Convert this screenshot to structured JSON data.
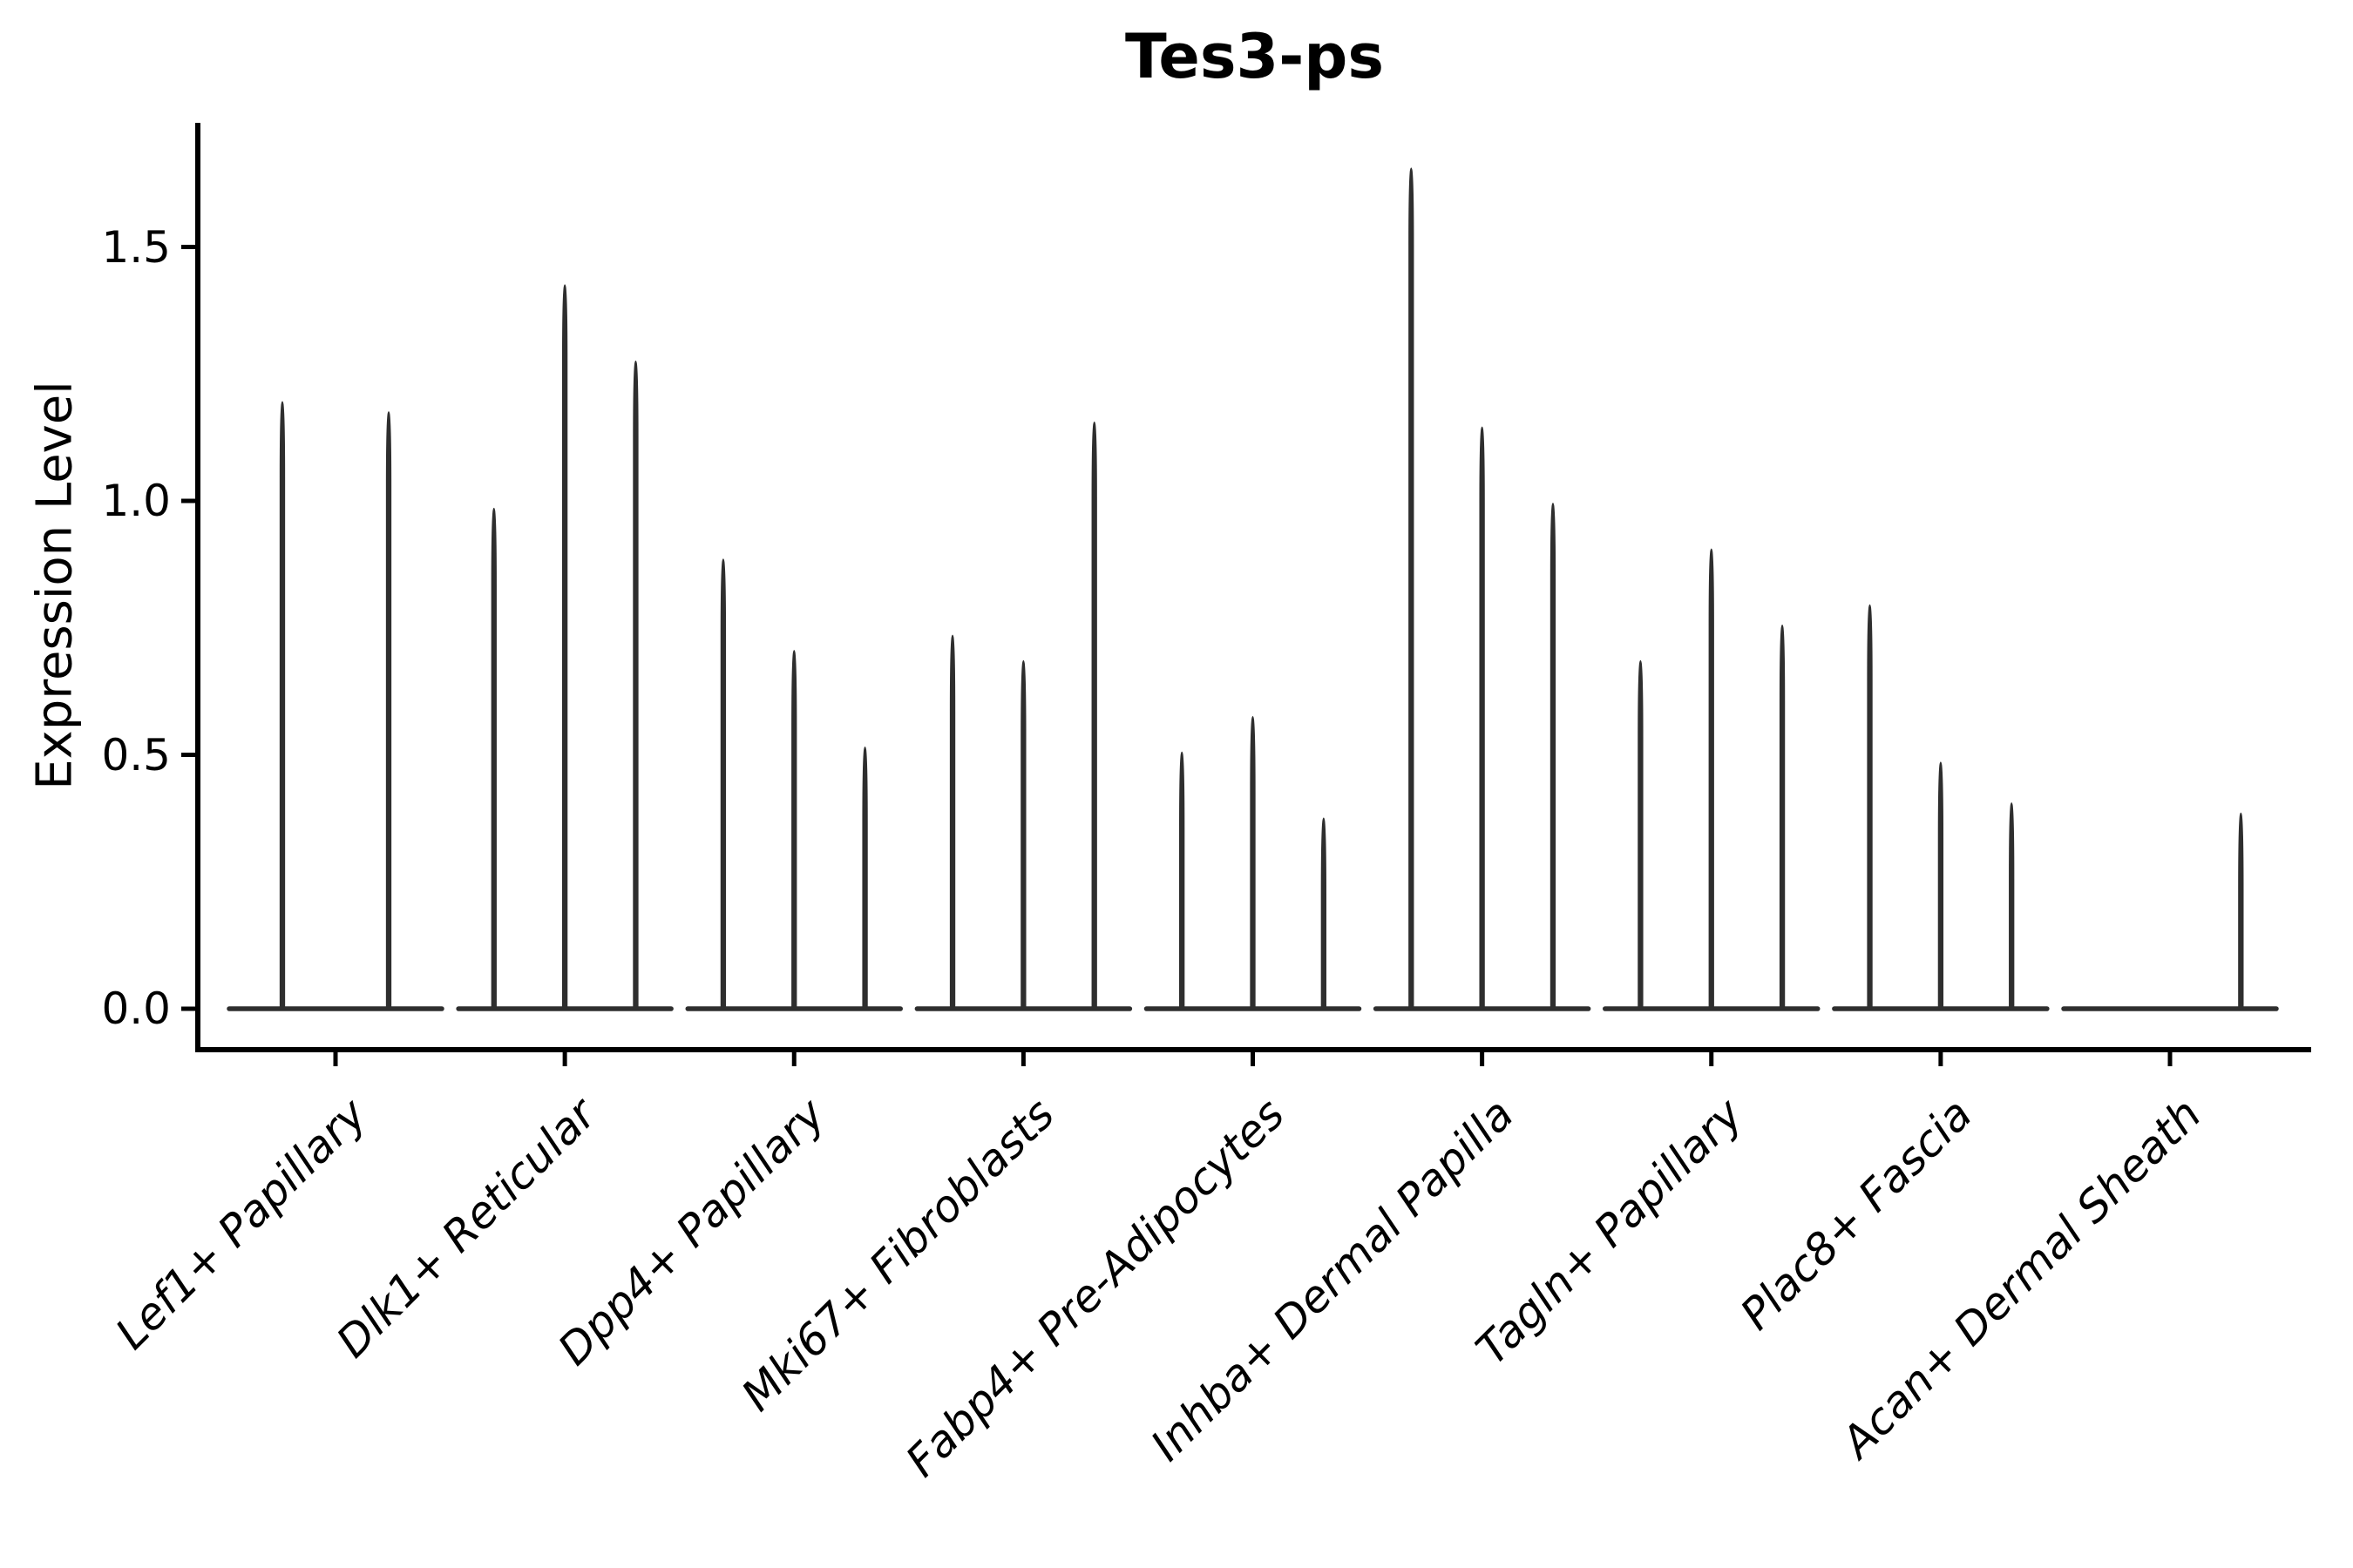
{
  "chart_data": {
    "type": "violin",
    "title": "Tes3-ps",
    "ylabel": "Expression Level",
    "xlabel": "",
    "ylim": [
      -0.08,
      1.74
    ],
    "yticks": [
      "0.0",
      "0.5",
      "1.0",
      "1.5"
    ],
    "ytick_values": [
      0.0,
      0.5,
      1.0,
      1.5
    ],
    "grid": false,
    "legend": null,
    "violin_color": "#2e2e2e",
    "axis_color": "#000000",
    "categories": [
      "Lef1+ Papillary",
      "Dlk1+ Reticular",
      "Dpp4+ Papillary",
      "Mki67+ Fibroblasts",
      "Fabp4+ Pre-Adipocytes",
      "Inhba+ Dermal Papilla",
      "Tagln+ Papillary",
      "Plac8+ Fascia",
      "Acan+ Dermal Sheath"
    ],
    "groups": [
      {
        "label": "Lef1+ Papillary",
        "violin_peaks": [
          1.2,
          1.18
        ]
      },
      {
        "label": "Dlk1+ Reticular",
        "violin_peaks": [
          0.99,
          1.43,
          1.28
        ]
      },
      {
        "label": "Dpp4+ Papillary",
        "violin_peaks": [
          0.89,
          0.71,
          0.52
        ]
      },
      {
        "label": "Mki67+ Fibroblasts",
        "violin_peaks": [
          0.74,
          0.69,
          1.16
        ]
      },
      {
        "label": "Fabp4+ Pre-Adipocytes",
        "violin_peaks": [
          0.51,
          0.58,
          0.38
        ]
      },
      {
        "label": "Inhba+ Dermal Papilla",
        "violin_peaks": [
          1.66,
          1.15,
          1.0
        ]
      },
      {
        "label": "Tagln+ Papillary",
        "violin_peaks": [
          0.69,
          0.91,
          0.76
        ]
      },
      {
        "label": "Plac8+ Fascia",
        "violin_peaks": [
          0.8,
          0.49,
          0.41
        ]
      },
      {
        "label": "Acan+ Dermal Sheath",
        "violin_peaks": [
          0.0,
          0.0,
          0.39
        ]
      }
    ]
  }
}
